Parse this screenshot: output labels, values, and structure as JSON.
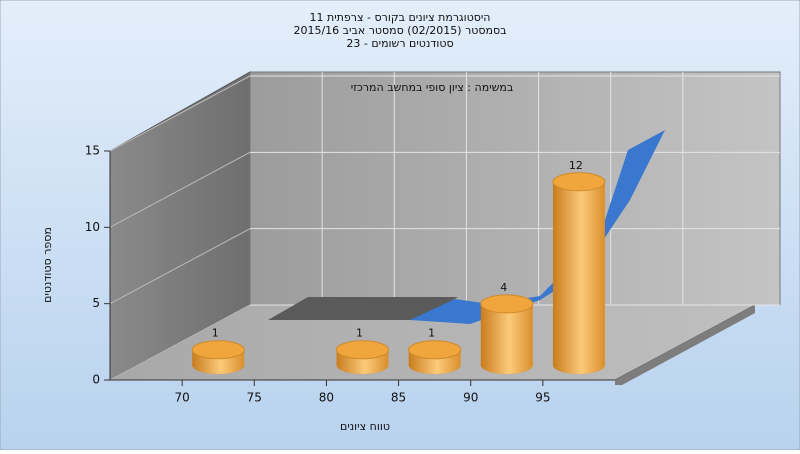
{
  "chart_data": {
    "type": "histogram",
    "title": [
      "היסטוגרמת ציונים בקורס - צרפתית 11",
      "בסמסטר (02/2015) סמסטר אביב 2015/16",
      "סטודנטים רשומים - 23"
    ],
    "subtitle": "במשימה : ציון סופי במחשב המרכזי",
    "x_label": "טווח ציונים",
    "y_label": "מספר סטודנטים",
    "bins": [
      70,
      75,
      80,
      85,
      90,
      95,
      100
    ],
    "counts": [
      1,
      0,
      1,
      1,
      4,
      12
    ],
    "color": "#f0a63c",
    "xlim": [
      65,
      100
    ],
    "xticks": [
      70,
      75,
      80,
      85,
      90,
      95
    ],
    "ylim": [
      0,
      15
    ],
    "yticks": [
      0,
      5,
      10,
      15
    ],
    "grid": true
  }
}
